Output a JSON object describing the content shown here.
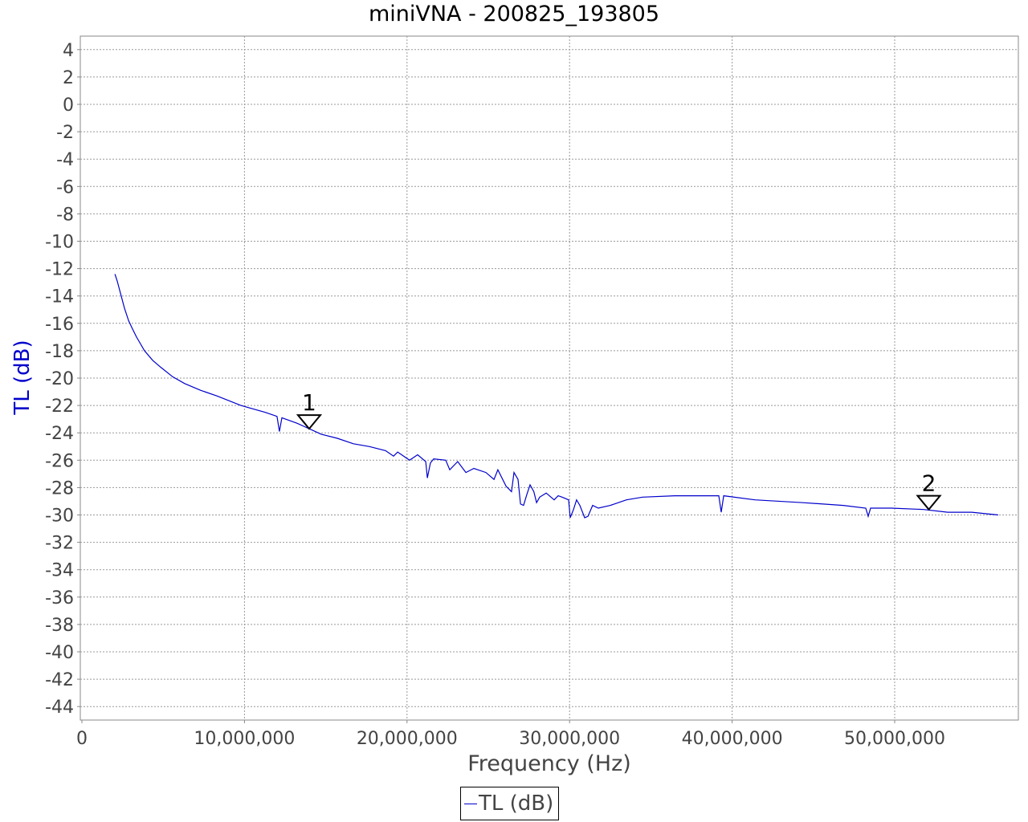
{
  "chart_data": {
    "type": "line",
    "title": "miniVNA - 200825_193805",
    "xlabel": "Frequency (Hz)",
    "ylabel": "TL (dB)",
    "xlim": [
      0,
      57700000
    ],
    "ylim": [
      -45,
      5
    ],
    "x_ticks": [
      0,
      10000000,
      20000000,
      30000000,
      40000000,
      50000000
    ],
    "x_tick_labels": [
      "0",
      "10,000,000",
      "20,000,000",
      "30,000,000",
      "40,000,000",
      "50,000,000"
    ],
    "y_ticks": [
      4,
      2,
      0,
      -2,
      -4,
      -6,
      -8,
      -10,
      -12,
      -14,
      -16,
      -18,
      -20,
      -22,
      -24,
      -26,
      -28,
      -30,
      -32,
      -34,
      -36,
      -38,
      -40,
      -42,
      -44
    ],
    "grid": true,
    "legend_position": "bottom",
    "series_color": "#0000cc",
    "series": [
      {
        "name": "TL (dB)",
        "x": [
          2.03,
          2.17,
          2.37,
          2.62,
          2.87,
          3.11,
          3.36,
          3.85,
          4.35,
          4.84,
          5.58,
          6.32,
          7.31,
          8.3,
          9.78,
          11.26,
          12.0,
          12.15,
          12.3,
          13.24,
          13.98,
          14.72,
          15.71,
          16.7,
          17.69,
          18.68,
          19.17,
          19.42,
          20.16,
          20.65,
          21.15,
          21.25,
          21.44,
          21.64,
          22.38,
          22.63,
          23.12,
          23.62,
          24.11,
          24.85,
          25.35,
          25.59,
          26.09,
          26.43,
          26.58,
          26.83,
          26.98,
          27.17,
          27.37,
          27.57,
          27.8,
          27.97,
          28.16,
          28.56,
          29.05,
          29.3,
          29.54,
          29.94,
          30.04,
          30.24,
          30.43,
          30.63,
          30.93,
          31.13,
          31.42,
          31.77,
          32.51,
          33.5,
          34.49,
          36.46,
          37.94,
          39.18,
          39.33,
          39.48,
          41.4,
          44.37,
          46.84,
          48.22,
          48.37,
          48.52,
          49.8,
          51.78,
          53.26,
          54.74,
          56.37
        ],
        "x_unit_multiplier": 1000000,
        "y": [
          -12.4,
          -12.9,
          -13.8,
          -14.9,
          -15.8,
          -16.4,
          -17.0,
          -18.0,
          -18.7,
          -19.2,
          -19.9,
          -20.4,
          -20.9,
          -21.3,
          -22.0,
          -22.5,
          -22.8,
          -23.9,
          -22.9,
          -23.3,
          -23.7,
          -24.1,
          -24.4,
          -24.8,
          -25.0,
          -25.3,
          -25.7,
          -25.4,
          -26.0,
          -25.6,
          -26.1,
          -27.3,
          -26.2,
          -25.9,
          -26.0,
          -26.7,
          -26.1,
          -26.9,
          -26.6,
          -26.9,
          -27.4,
          -26.7,
          -27.9,
          -28.3,
          -26.9,
          -27.4,
          -29.2,
          -29.3,
          -28.5,
          -27.8,
          -28.3,
          -29.1,
          -28.7,
          -28.4,
          -28.9,
          -28.6,
          -28.7,
          -28.9,
          -30.2,
          -29.6,
          -28.9,
          -29.3,
          -30.2,
          -30.1,
          -29.3,
          -29.5,
          -29.3,
          -28.9,
          -28.7,
          -28.6,
          -28.6,
          -28.6,
          -29.8,
          -28.6,
          -28.9,
          -29.1,
          -29.3,
          -29.5,
          -30.1,
          -29.5,
          -29.5,
          -29.6,
          -29.8,
          -29.8,
          -30.0
        ]
      }
    ],
    "markers": [
      {
        "label": "1",
        "x": 13980000,
        "y": -23.7
      },
      {
        "label": "2",
        "x": 52100000,
        "y": -29.6
      }
    ]
  }
}
